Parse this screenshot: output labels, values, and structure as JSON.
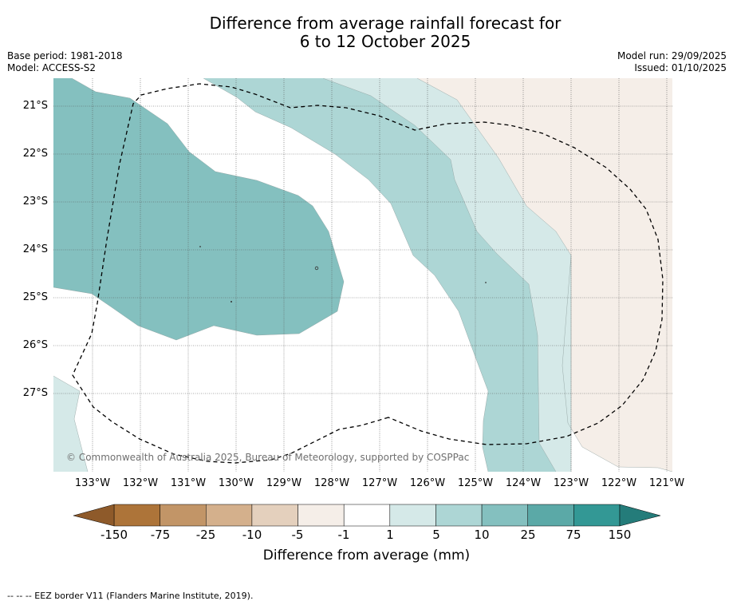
{
  "title": {
    "line1": "Difference from average rainfall forecast for",
    "line2": "6 to 12 October 2025"
  },
  "meta": {
    "base_period": "Base period: 1981-2018",
    "model": "Model: ACCESS-S2",
    "model_run": "Model run: 29/09/2025",
    "issued": "Issued: 01/10/2025"
  },
  "map": {
    "latitudes": [
      "21°S",
      "22°S",
      "23°S",
      "24°S",
      "25°S",
      "26°S",
      "27°S"
    ],
    "longitudes": [
      "133°W",
      "132°W",
      "131°W",
      "130°W",
      "129°W",
      "128°W",
      "127°W",
      "126°W",
      "125°W",
      "124°W",
      "123°W",
      "122°W",
      "121°W"
    ],
    "copyright": "© Commonwealth of Australia 2025, Bureau of Meteorology, supported by COSPPac"
  },
  "legend": {
    "ticks": [
      "-150",
      "-75",
      "-25",
      "-10",
      "-5",
      "-1",
      "1",
      "5",
      "10",
      "25",
      "75",
      "150"
    ],
    "colors": [
      "#ad7439",
      "#c29567",
      "#d4b08c",
      "#e4d0bd",
      "#f5eee8",
      "#ffffff",
      "#d5e9e8",
      "#add6d5",
      "#84c0bf",
      "#5ba9a7",
      "#339895"
    ],
    "end_low_color": "#8e5a2a",
    "end_high_color": "#247c7a",
    "label": "Difference from average (mm)"
  },
  "footer": "--  --  -- EEZ border V11 (Flanders Marine Institute, 2019)."
}
